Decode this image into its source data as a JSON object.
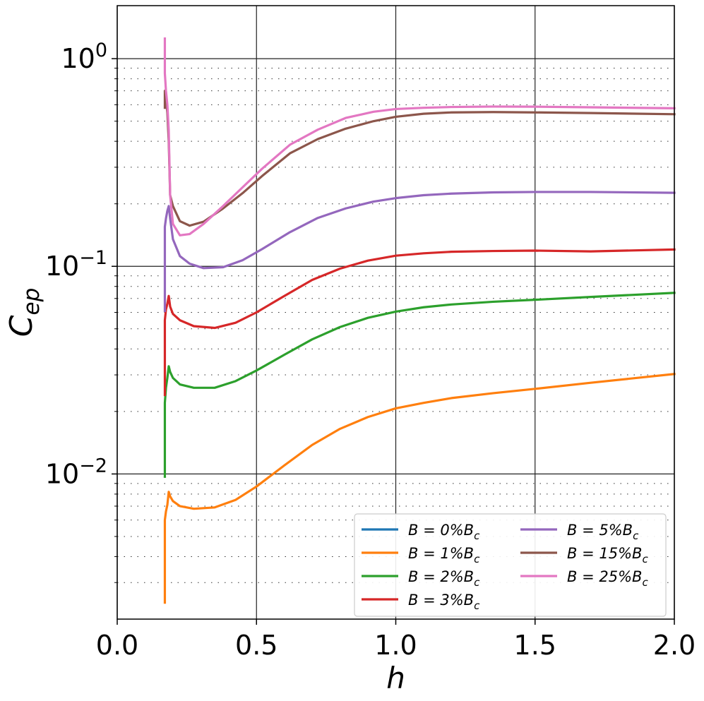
{
  "chart_data": {
    "type": "line",
    "title": "",
    "xlabel": "h",
    "ylabel": "C_ep",
    "xlim": [
      0.0,
      2.0
    ],
    "ylim": [
      0.002,
      1.8
    ],
    "yscale": "log",
    "grid": {
      "major": true,
      "minor_y": true
    },
    "legend_placement": "lower right",
    "xticks": [
      {
        "value": 0.0,
        "label": "0.0"
      },
      {
        "value": 0.5,
        "label": "0.5"
      },
      {
        "value": 1.0,
        "label": "1.0"
      },
      {
        "value": 1.5,
        "label": "1.5"
      },
      {
        "value": 2.0,
        "label": "2.0"
      }
    ],
    "yticks": [
      {
        "value": 1.0,
        "base": "10",
        "exp": "0"
      },
      {
        "value": 0.1,
        "base": "10",
        "exp": "−1"
      },
      {
        "value": 0.01,
        "base": "10",
        "exp": "−2"
      }
    ],
    "series": [
      {
        "name": "B = 0%B_c",
        "label_main": "B = 0%B",
        "label_sub": "c",
        "color": "#1f77b4",
        "x": [],
        "y": []
      },
      {
        "name": "B = 1%B_c",
        "label_main": "B = 1%B",
        "label_sub": "c",
        "color": "#ff7f0e",
        "x": [
          0.171,
          0.171,
          0.175,
          0.18,
          0.185,
          0.19,
          0.2,
          0.225,
          0.275,
          0.35,
          0.425,
          0.5,
          0.6,
          0.7,
          0.8,
          0.9,
          1.0,
          1.1,
          1.2,
          1.35,
          1.5,
          1.7,
          2.0
        ],
        "y": [
          0.0024,
          0.006,
          0.0066,
          0.0071,
          0.0082,
          0.0078,
          0.0074,
          0.007,
          0.0068,
          0.0069,
          0.0075,
          0.0087,
          0.011,
          0.0138,
          0.0165,
          0.0188,
          0.0207,
          0.022,
          0.0232,
          0.0245,
          0.0257,
          0.0275,
          0.0303
        ]
      },
      {
        "name": "B = 2%B_c",
        "label_main": "B = 2%B",
        "label_sub": "c",
        "color": "#2ca02c",
        "x": [
          0.171,
          0.171,
          0.175,
          0.18,
          0.185,
          0.19,
          0.2,
          0.225,
          0.275,
          0.35,
          0.425,
          0.5,
          0.6,
          0.7,
          0.8,
          0.9,
          1.0,
          1.1,
          1.2,
          1.35,
          1.5,
          1.7,
          2.0
        ],
        "y": [
          0.0097,
          0.022,
          0.026,
          0.029,
          0.033,
          0.031,
          0.029,
          0.027,
          0.026,
          0.026,
          0.028,
          0.0315,
          0.0375,
          0.0445,
          0.051,
          0.0565,
          0.0605,
          0.0635,
          0.0655,
          0.0675,
          0.069,
          0.0712,
          0.0745
        ]
      },
      {
        "name": "B = 3%B_c",
        "label_main": "B = 3%B",
        "label_sub": "c",
        "color": "#d62728",
        "x": [
          0.171,
          0.171,
          0.175,
          0.18,
          0.185,
          0.19,
          0.2,
          0.225,
          0.275,
          0.35,
          0.425,
          0.5,
          0.6,
          0.7,
          0.8,
          0.9,
          1.0,
          1.1,
          1.2,
          1.35,
          1.5,
          1.7,
          2.0
        ],
        "y": [
          0.024,
          0.055,
          0.062,
          0.066,
          0.072,
          0.064,
          0.059,
          0.055,
          0.0515,
          0.0505,
          0.0535,
          0.06,
          0.072,
          0.086,
          0.0975,
          0.1065,
          0.1125,
          0.1155,
          0.1175,
          0.1185,
          0.119,
          0.118,
          0.1205
        ]
      },
      {
        "name": "B = 5%B_c",
        "label_main": "B = 5%B",
        "label_sub": "c",
        "color": "#9467bd",
        "x": [
          0.171,
          0.171,
          0.175,
          0.18,
          0.185,
          0.19,
          0.2,
          0.225,
          0.26,
          0.31,
          0.38,
          0.45,
          0.52,
          0.62,
          0.72,
          0.82,
          0.92,
          1.0,
          1.1,
          1.2,
          1.35,
          1.5,
          1.7,
          2.0
        ],
        "y": [
          0.061,
          0.155,
          0.17,
          0.185,
          0.195,
          0.17,
          0.135,
          0.112,
          0.103,
          0.098,
          0.099,
          0.107,
          0.121,
          0.146,
          0.171,
          0.19,
          0.205,
          0.213,
          0.22,
          0.224,
          0.227,
          0.228,
          0.228,
          0.226
        ]
      },
      {
        "name": "B = 15%B_c",
        "label_main": "B = 15%B",
        "label_sub": "c",
        "color": "#8c564b",
        "x": [
          0.171,
          0.171,
          0.175,
          0.18,
          0.185,
          0.19,
          0.2,
          0.225,
          0.26,
          0.31,
          0.38,
          0.45,
          0.52,
          0.62,
          0.72,
          0.82,
          0.92,
          1.0,
          1.1,
          1.2,
          1.35,
          1.5,
          1.7,
          2.0
        ],
        "y": [
          0.58,
          0.7,
          0.64,
          0.55,
          0.4,
          0.22,
          0.195,
          0.165,
          0.157,
          0.164,
          0.19,
          0.225,
          0.272,
          0.35,
          0.41,
          0.46,
          0.5,
          0.525,
          0.543,
          0.551,
          0.553,
          0.551,
          0.547,
          0.54
        ]
      },
      {
        "name": "B = 25%B_c",
        "label_main": "B = 25%B",
        "label_sub": "c",
        "color": "#e377c2",
        "x": [
          0.171,
          0.171,
          0.175,
          0.18,
          0.185,
          0.19,
          0.2,
          0.225,
          0.26,
          0.31,
          0.38,
          0.45,
          0.52,
          0.62,
          0.72,
          0.82,
          0.92,
          1.0,
          1.1,
          1.2,
          1.35,
          1.5,
          1.7,
          2.0
        ],
        "y": [
          1.25,
          0.85,
          0.7,
          0.6,
          0.45,
          0.22,
          0.16,
          0.141,
          0.143,
          0.16,
          0.195,
          0.24,
          0.295,
          0.385,
          0.455,
          0.518,
          0.555,
          0.572,
          0.58,
          0.585,
          0.588,
          0.587,
          0.583,
          0.577
        ]
      }
    ]
  }
}
